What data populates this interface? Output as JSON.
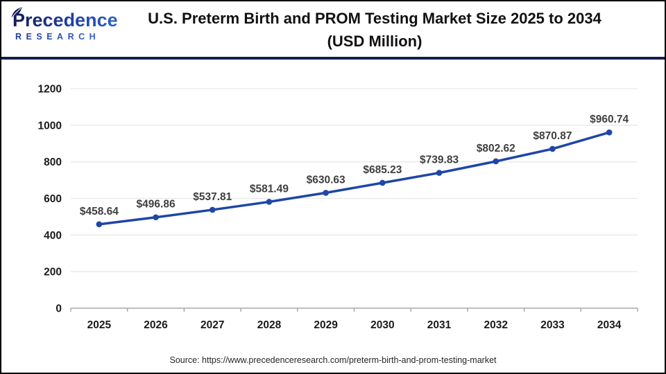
{
  "header": {
    "logo_brand": "Precedence",
    "logo_sub": "RESEARCH",
    "title_line1": "U.S. Preterm Birth and PROM Testing Market Size 2025 to 2034",
    "title_line2": "(USD Million)"
  },
  "footer": {
    "source": "Source: https://www.precedenceresearch.com/preterm-birth-and-prom-testing-market"
  },
  "colors": {
    "line": "#1e46a6",
    "marker": "#1e46a6",
    "grid": "#e8e8e8",
    "axis": "#a8a8a8",
    "data_label": "#3f3f3f",
    "tick_label": "#1a1a1a",
    "divider_navy": "#171c50",
    "logo_navy": "#141c55",
    "logo_blue": "#2f66cc"
  },
  "chart_data": {
    "type": "line",
    "title": "U.S. Preterm Birth and PROM Testing Market Size 2025 to 2034 (USD Million)",
    "categories": [
      "2025",
      "2026",
      "2027",
      "2028",
      "2029",
      "2030",
      "2031",
      "2032",
      "2033",
      "2034"
    ],
    "values": [
      458.64,
      496.86,
      537.81,
      581.49,
      630.63,
      685.23,
      739.83,
      802.62,
      870.87,
      960.74
    ],
    "data_labels": [
      "$458.64",
      "$496.86",
      "$537.81",
      "$581.49",
      "$630.63",
      "$685.23",
      "$739.83",
      "$802.62",
      "$870.87",
      "$960.74"
    ],
    "y_ticks": [
      0,
      200,
      400,
      600,
      800,
      1000,
      1200
    ],
    "ylim": [
      0,
      1200
    ],
    "xlabel": "",
    "ylabel": "",
    "grid": true,
    "legend": "none"
  }
}
